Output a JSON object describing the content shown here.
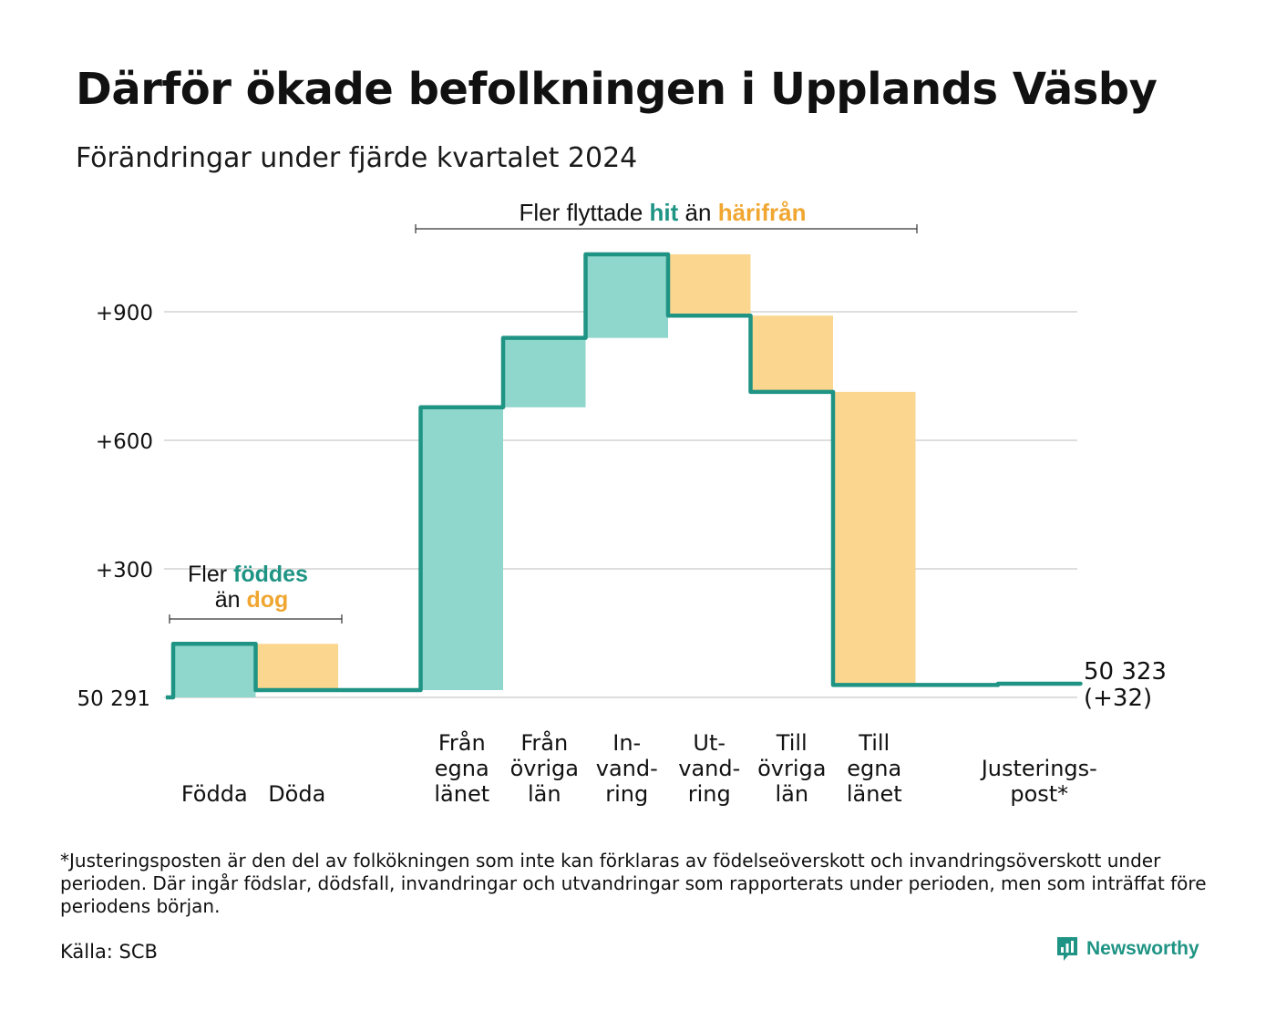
{
  "title": "Därför ökade befolkningen i Upplands Väsby",
  "subtitle": "Förändringar under fjärde kvartalet 2024",
  "colors": {
    "increase": "#8fd6cc",
    "decrease": "#fbd68f",
    "line": "#1f9484",
    "grid": "#dedede",
    "accent_orange": "#f0a630",
    "accent_teal": "#1f9484"
  },
  "annotations": {
    "births_top": {
      "a": "Fler ",
      "b": "föddes"
    },
    "births_bottom": {
      "a": "än ",
      "b": "dog"
    },
    "migration": {
      "a": "Fler flyttade ",
      "b": "hit",
      "c": " än ",
      "d": "härifrån"
    }
  },
  "end_label": {
    "line1": "50 323",
    "line2": "(+32)"
  },
  "chart_data": {
    "type": "waterfall",
    "baseline": 50291,
    "baseline_label": "50 291",
    "yticks": [
      {
        "value": 300,
        "label": "+300"
      },
      {
        "value": 600,
        "label": "+600"
      },
      {
        "value": 900,
        "label": "+900"
      }
    ],
    "ylim": [
      0,
      1050
    ],
    "steps": [
      {
        "label": [
          "Födda"
        ],
        "change": 125,
        "group": "births"
      },
      {
        "label": [
          "Döda"
        ],
        "change": -108,
        "group": "births"
      },
      {
        "label": [],
        "change": 0,
        "group": "gap"
      },
      {
        "label": [
          "Från",
          "egna",
          "länet"
        ],
        "change": 660,
        "group": "migration"
      },
      {
        "label": [
          "Från",
          "övriga",
          "län"
        ],
        "change": 162,
        "group": "migration"
      },
      {
        "label": [
          "In-",
          "vand-",
          "ring"
        ],
        "change": 195,
        "group": "migration"
      },
      {
        "label": [
          "Ut-",
          "vand-",
          "ring"
        ],
        "change": -143,
        "group": "migration"
      },
      {
        "label": [
          "Till",
          "övriga",
          "län"
        ],
        "change": -178,
        "group": "migration"
      },
      {
        "label": [
          "Till",
          "egna",
          "länet"
        ],
        "change": -684,
        "group": "migration"
      },
      {
        "label": [],
        "change": 0,
        "group": "gap"
      },
      {
        "label": [
          "Justerings-",
          "post*"
        ],
        "change": 3,
        "group": "adjust"
      }
    ],
    "end_total": 50323,
    "end_change": 32
  },
  "footnote": "*Justeringsposten är den del av folkökningen som inte kan förklaras av födelseöverskott och invandringsöverskott under perioden. Där ingår födslar, dödsfall, invandringar och utvandringar som rapporterats under perioden, men som inträffat före periodens början.",
  "source": "Källa: SCB",
  "brand": {
    "name": "Newsworthy",
    "icon": "newsworthy-logo-icon"
  }
}
